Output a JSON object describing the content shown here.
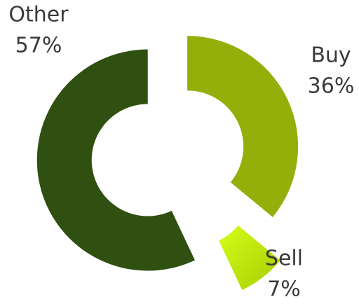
{
  "chart_data": {
    "type": "donut",
    "categories": [
      "Buy",
      "Sell",
      "Other"
    ],
    "values": [
      36,
      7,
      57
    ],
    "value_labels": [
      "36%",
      "7%",
      "57%"
    ],
    "colors": [
      "#94ae0a",
      "#c8f000",
      "#2f5010"
    ]
  }
}
